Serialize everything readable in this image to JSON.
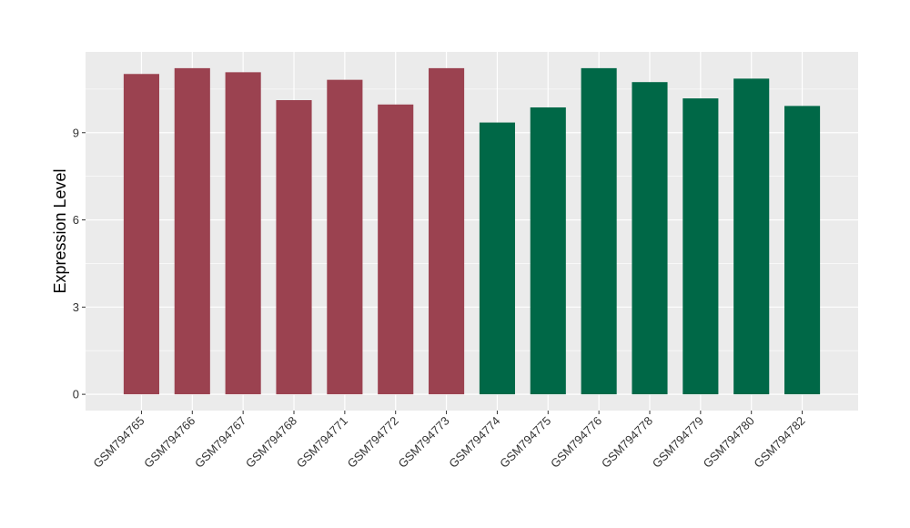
{
  "chart_data": {
    "type": "bar",
    "title": "",
    "xlabel": "",
    "ylabel": "Expression Level",
    "categories": [
      "GSM794765",
      "GSM794766",
      "GSM794767",
      "GSM794768",
      "GSM794771",
      "GSM794772",
      "GSM794773",
      "GSM794774",
      "GSM794775",
      "GSM794776",
      "GSM794778",
      "GSM794779",
      "GSM794780",
      "GSM794782"
    ],
    "values": [
      11.02,
      11.22,
      11.08,
      10.12,
      10.82,
      9.97,
      11.22,
      9.35,
      9.87,
      11.22,
      10.74,
      10.18,
      10.86,
      9.92
    ],
    "bar_colors": [
      "#9b4250",
      "#9b4250",
      "#9b4250",
      "#9b4250",
      "#9b4250",
      "#9b4250",
      "#9b4250",
      "#006847",
      "#006847",
      "#006847",
      "#006847",
      "#006847",
      "#006847",
      "#006847"
    ],
    "yticks": [
      0,
      3,
      6,
      9
    ],
    "ytick_labels": [
      "0",
      "3",
      "6",
      "9"
    ],
    "ylim": [
      -0.56,
      11.78
    ],
    "grid": true,
    "legend": "none",
    "panel_background": "#ebebeb",
    "grid_color": "#ffffff"
  }
}
